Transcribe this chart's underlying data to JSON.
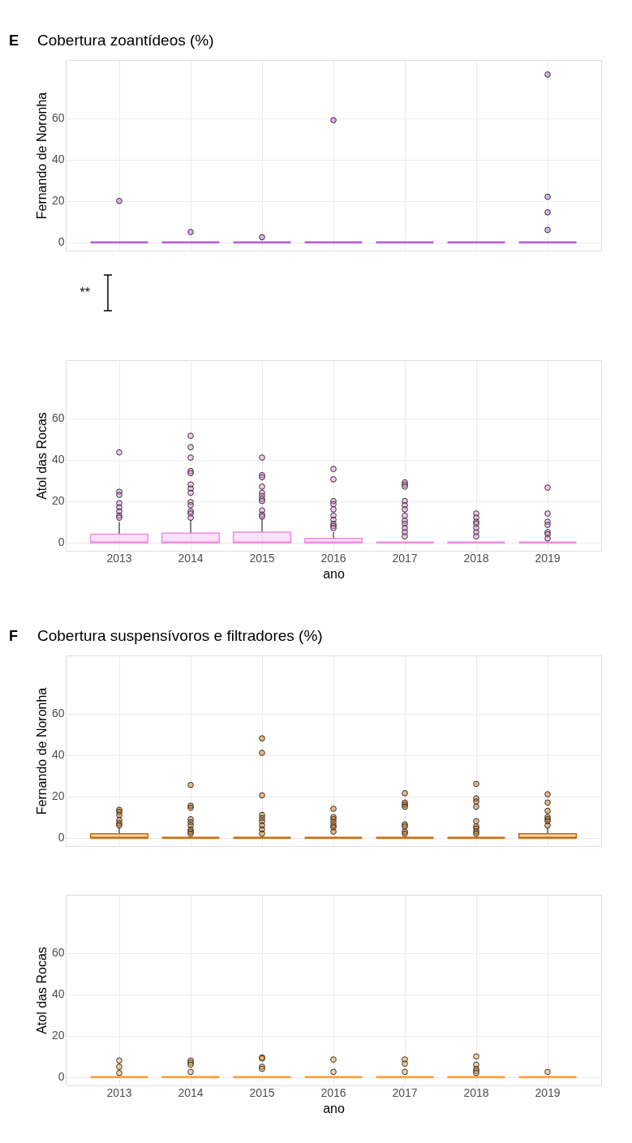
{
  "chart_data": [
    {
      "type": "box",
      "title": "Cobertura zoantídeos (%)",
      "annotations": [
        "E",
        "**"
      ],
      "ylabel": "Fernando de Noronha",
      "categories": [
        "2013",
        "2014",
        "2015",
        "2016",
        "2017",
        "2018",
        "2019"
      ],
      "ylim": [
        -4,
        88
      ],
      "yticks": [
        0,
        20,
        40,
        60
      ],
      "grid": true,
      "tick_labels": "y",
      "series": [
        {
          "color": "#b855d6",
          "boxes": [
            {
              "low": 0,
              "q1": 0,
              "median": 0,
              "q3": 0,
              "high": 0,
              "outliers": [
                20
              ]
            },
            {
              "low": 0,
              "q1": 0,
              "median": 0,
              "q3": 0,
              "high": 0,
              "outliers": [
                5
              ]
            },
            {
              "low": 0,
              "q1": 0,
              "median": 0,
              "q3": 0,
              "high": 0,
              "outliers": [
                2.5
              ]
            },
            {
              "low": 0,
              "q1": 0,
              "median": 0,
              "q3": 0,
              "high": 0,
              "outliers": [
                59
              ]
            },
            {
              "low": 0,
              "q1": 0,
              "median": 0,
              "q3": 0,
              "high": 0
            },
            {
              "low": 0,
              "q1": 0,
              "median": 0,
              "q3": 0,
              "high": 0
            },
            {
              "low": 0,
              "q1": 0,
              "median": 0,
              "q3": 0,
              "high": 0,
              "outliers": [
                81,
                22,
                14.5,
                6
              ]
            }
          ]
        }
      ]
    },
    {
      "type": "box",
      "xlabel": "ano",
      "ylabel": "Atol das Rocas",
      "categories": [
        "2013",
        "2014",
        "2015",
        "2016",
        "2017",
        "2018",
        "2019"
      ],
      "ylim": [
        -4,
        88
      ],
      "yticks": [
        0,
        20,
        40,
        60
      ],
      "grid": true,
      "series": [
        {
          "color": "#f28ae6",
          "boxes": [
            {
              "low": 0,
              "q1": 0,
              "median": 0,
              "q3": 4,
              "high": 10,
              "outliers": [
                43.5,
                24.5,
                23,
                19,
                17,
                15,
                13,
                12
              ]
            },
            {
              "low": 0,
              "q1": 0,
              "median": 0,
              "q3": 4.5,
              "high": 11,
              "outliers": [
                51.5,
                46,
                41,
                34.5,
                33.5,
                28,
                26,
                24,
                19.5,
                18,
                15,
                14,
                12
              ]
            },
            {
              "low": 0,
              "q1": 0,
              "median": 0,
              "q3": 5,
              "high": 12,
              "outliers": [
                41,
                32.5,
                31.5,
                27,
                24,
                22.5,
                21,
                20,
                15.5,
                13.5,
                12.5
              ]
            },
            {
              "low": 0,
              "q1": 0,
              "median": 0,
              "q3": 2,
              "high": 5,
              "outliers": [
                35.5,
                30.5,
                20,
                18.5,
                16,
                13,
                11,
                9,
                8,
                7
              ]
            },
            {
              "low": 0,
              "q1": 0,
              "median": 0,
              "q3": 0,
              "high": 0,
              "outliers": [
                29,
                28,
                27,
                20,
                18,
                16,
                13,
                10.5,
                9,
                7,
                5,
                3
              ]
            },
            {
              "low": 0,
              "q1": 0,
              "median": 0,
              "q3": 0,
              "high": 0,
              "outliers": [
                14,
                12,
                10,
                9,
                7,
                5,
                3
              ]
            },
            {
              "low": 0,
              "q1": 0,
              "median": 0,
              "q3": 0,
              "high": 0,
              "outliers": [
                26.5,
                14,
                10,
                8.5,
                5,
                4,
                2
              ]
            }
          ]
        }
      ]
    },
    {
      "type": "box",
      "title": "Cobertura suspensívoros e filtradores (%)",
      "annotations": [
        "F"
      ],
      "ylabel": "Fernando de Noronha",
      "categories": [
        "2013",
        "2014",
        "2015",
        "2016",
        "2017",
        "2018",
        "2019"
      ],
      "ylim": [
        -4,
        88
      ],
      "yticks": [
        0,
        20,
        40,
        60
      ],
      "grid": true,
      "tick_labels": "y",
      "series": [
        {
          "color": "#cc6600",
          "boxes": [
            {
              "low": 0,
              "q1": 0,
              "median": 0,
              "q3": 2,
              "high": 5,
              "outliers": [
                13.5,
                12.5,
                11,
                8.5,
                7,
                6
              ]
            },
            {
              "low": 0,
              "q1": 0,
              "median": 0,
              "q3": 0,
              "high": 0,
              "outliers": [
                25.5,
                15.5,
                14.5,
                9,
                7.5,
                6,
                4,
                3,
                2
              ]
            },
            {
              "low": 0,
              "q1": 0,
              "median": 0,
              "q3": 0,
              "high": 0,
              "outliers": [
                48,
                41,
                20.5,
                11,
                9.5,
                8,
                6,
                4,
                2
              ]
            },
            {
              "low": 0,
              "q1": 0,
              "median": 0,
              "q3": 0,
              "high": 0,
              "outliers": [
                14,
                10,
                9,
                7.5,
                6,
                5,
                3
              ]
            },
            {
              "low": 0,
              "q1": 0,
              "median": 0,
              "q3": 0,
              "high": 0,
              "outliers": [
                21.5,
                17,
                16,
                15,
                6.5,
                5.5,
                3,
                2
              ]
            },
            {
              "low": 0,
              "q1": 0,
              "median": 0,
              "q3": 0,
              "high": 0,
              "outliers": [
                26,
                19,
                17.5,
                15,
                8,
                5.5,
                4.5,
                3,
                2
              ]
            },
            {
              "low": 0,
              "q1": 0,
              "median": 0,
              "q3": 2,
              "high": 5,
              "outliers": [
                21,
                17,
                13,
                10,
                9,
                8,
                6
              ]
            }
          ]
        }
      ]
    },
    {
      "type": "box",
      "xlabel": "ano",
      "ylabel": "Atol das Rocas",
      "categories": [
        "2013",
        "2014",
        "2015",
        "2016",
        "2017",
        "2018",
        "2019"
      ],
      "ylim": [
        -4,
        88
      ],
      "yticks": [
        0,
        20,
        40,
        60
      ],
      "grid": true,
      "series": [
        {
          "color": "#ff9933",
          "boxes": [
            {
              "low": 0,
              "q1": 0,
              "median": 0,
              "q3": 0,
              "high": 0,
              "outliers": [
                8,
                5,
                2
              ]
            },
            {
              "low": 0,
              "q1": 0,
              "median": 0,
              "q3": 0,
              "high": 0,
              "outliers": [
                8,
                7,
                6,
                2.5
              ]
            },
            {
              "low": 0,
              "q1": 0,
              "median": 0,
              "q3": 0,
              "high": 0,
              "outliers": [
                9.5,
                9,
                5,
                4
              ]
            },
            {
              "low": 0,
              "q1": 0,
              "median": 0,
              "q3": 0,
              "high": 0,
              "outliers": [
                8.5,
                2.5
              ]
            },
            {
              "low": 0,
              "q1": 0,
              "median": 0,
              "q3": 0,
              "high": 0,
              "outliers": [
                8.5,
                6.5,
                2.5
              ]
            },
            {
              "low": 0,
              "q1": 0,
              "median": 0,
              "q3": 0,
              "high": 0,
              "outliers": [
                10,
                6,
                4,
                3,
                2
              ]
            },
            {
              "low": 0,
              "q1": 0,
              "median": 0,
              "q3": 0,
              "high": 0,
              "outliers": [
                2.5
              ]
            }
          ]
        }
      ]
    }
  ]
}
